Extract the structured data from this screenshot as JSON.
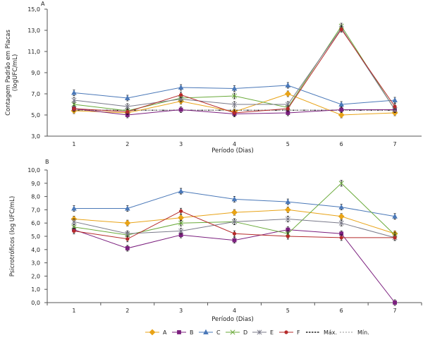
{
  "chart_data": [
    {
      "type": "line",
      "panel_label": "A",
      "title": "",
      "xlabel": "Período (Dias)",
      "ylabel_lines": [
        "Contagem Padrão em Placas",
        "(logUFC/mL)"
      ],
      "ylim": [
        3.0,
        15.0
      ],
      "yticks": [
        "3,0",
        "5,0",
        "7,0",
        "9,0",
        "11,0",
        "13,0",
        "15,0"
      ],
      "ytick_values": [
        3,
        5,
        7,
        9,
        11,
        13,
        15
      ],
      "categories": [
        "1",
        "2",
        "3",
        "4",
        "5",
        "6",
        "7"
      ],
      "x_tick_marks": false,
      "grid": false,
      "series": [
        {
          "name": "A",
          "values": [
            5.4,
            5.2,
            6.3,
            5.3,
            7.0,
            5.0,
            5.2
          ]
        },
        {
          "name": "B",
          "values": [
            5.6,
            5.0,
            5.5,
            5.1,
            5.2,
            5.5,
            5.5
          ]
        },
        {
          "name": "C",
          "values": [
            7.1,
            6.6,
            7.6,
            7.5,
            7.8,
            6.0,
            6.4
          ]
        },
        {
          "name": "D",
          "values": [
            6.0,
            5.4,
            6.6,
            6.8,
            5.7,
            13.4,
            5.5
          ]
        },
        {
          "name": "E",
          "values": [
            6.4,
            5.8,
            6.5,
            6.0,
            6.0,
            13.2,
            5.5
          ]
        },
        {
          "name": "F",
          "values": [
            5.6,
            5.3,
            6.9,
            5.2,
            5.6,
            13.1,
            5.8
          ]
        },
        {
          "name": "Máx.",
          "values": [
            5.45,
            5.45,
            5.45,
            5.45,
            5.45,
            5.45,
            5.45
          ]
        },
        {
          "name": "Mín.",
          "values": [
            5.45,
            5.45,
            5.45,
            5.45,
            5.45,
            5.45,
            5.45
          ]
        }
      ]
    },
    {
      "type": "line",
      "panel_label": "B",
      "title": "",
      "xlabel": "Período (Dias)",
      "ylabel_lines": [
        "Psicrotróficos (log UFC/mL)"
      ],
      "ylim": [
        0.0,
        10.0
      ],
      "yticks": [
        "0,0",
        "1,0",
        "2,0",
        "3,0",
        "4,0",
        "5,0",
        "6,0",
        "7,0",
        "8,0",
        "9,0",
        "10,0"
      ],
      "ytick_values": [
        0,
        1,
        2,
        3,
        4,
        5,
        6,
        7,
        8,
        9,
        10
      ],
      "categories": [
        "1",
        "2",
        "3",
        "4",
        "5",
        "6",
        "7"
      ],
      "x_tick_marks": true,
      "grid": false,
      "series": [
        {
          "name": "A",
          "values": [
            6.3,
            6.0,
            6.4,
            6.8,
            7.0,
            6.5,
            5.2
          ]
        },
        {
          "name": "B",
          "values": [
            5.5,
            4.1,
            5.1,
            4.7,
            5.5,
            5.2,
            0.0
          ]
        },
        {
          "name": "C",
          "values": [
            7.1,
            7.1,
            8.4,
            7.8,
            7.6,
            7.2,
            6.5
          ]
        },
        {
          "name": "D",
          "values": [
            5.7,
            5.1,
            6.0,
            6.1,
            5.2,
            9.0,
            5.1
          ]
        },
        {
          "name": "E",
          "values": [
            6.1,
            5.2,
            5.4,
            6.1,
            6.3,
            6.0,
            4.9
          ]
        },
        {
          "name": "F",
          "values": [
            5.4,
            4.8,
            6.9,
            5.2,
            5.0,
            4.9,
            4.9
          ]
        }
      ]
    }
  ],
  "legend": {
    "placement": "bottom-center",
    "items": [
      {
        "name": "A",
        "color": "#E8A317",
        "marker": "diamond"
      },
      {
        "name": "B",
        "color": "#7B1F7E",
        "marker": "square"
      },
      {
        "name": "C",
        "color": "#4A78B8",
        "marker": "triangle"
      },
      {
        "name": "D",
        "color": "#6AAA3A",
        "marker": "x"
      },
      {
        "name": "E",
        "color": "#7A7A8A",
        "marker": "star"
      },
      {
        "name": "F",
        "color": "#B52A2A",
        "marker": "circle"
      },
      {
        "name": "Máx.",
        "color": "#222222",
        "marker": "dash-dark"
      },
      {
        "name": "Mín.",
        "color": "#AAAAAA",
        "marker": "dash-light"
      }
    ]
  }
}
